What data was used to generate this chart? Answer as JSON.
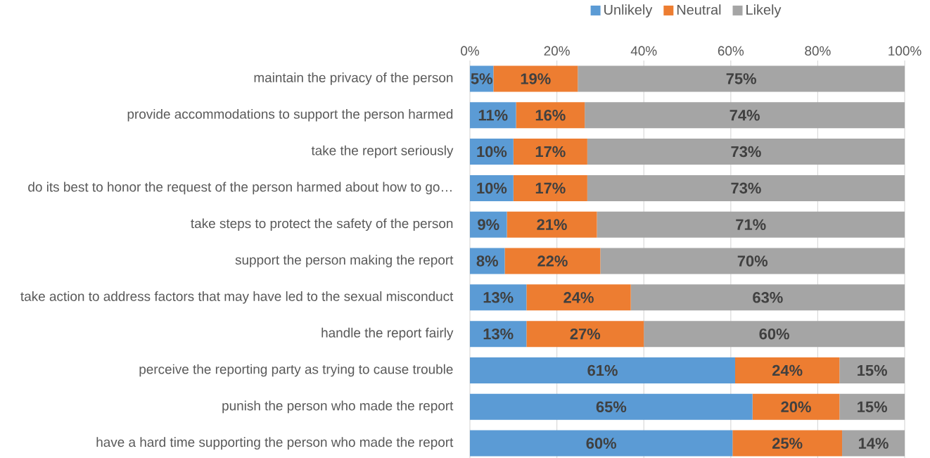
{
  "chart_data": {
    "type": "bar",
    "orientation": "horizontal",
    "stacked": true,
    "legend": "top",
    "grid": "x",
    "categories": [
      "maintain the privacy of the person",
      "provide accommodations to support the person harmed",
      "take the report seriously",
      "do its best to honor the request of the person harmed about how to go…",
      "take steps to protect the safety of the person",
      "support the person making the report",
      "take action to address factors that may have led to the sexual misconduct",
      "handle the report fairly",
      "perceive the reporting party as trying to cause trouble",
      "punish the person who made the report",
      "have a hard time supporting the person who made the report"
    ],
    "xlim": [
      0,
      100
    ],
    "xticks": [
      {
        "value": 0,
        "label": "0%"
      },
      {
        "value": 20,
        "label": "20%"
      },
      {
        "value": 40,
        "label": "40%"
      },
      {
        "value": 60,
        "label": "60%"
      },
      {
        "value": 80,
        "label": "80%"
      },
      {
        "value": 100,
        "label": "100%"
      }
    ],
    "series": [
      {
        "name": "Unlikely",
        "color": "#5b9bd5",
        "values": [
          5.4,
          10.6,
          10,
          10,
          8.5,
          8,
          13,
          13,
          61,
          65,
          60.4
        ],
        "value_labels": [
          "5%",
          "11%",
          "10%",
          "10%",
          "9%",
          "8%",
          "13%",
          "13%",
          "61%",
          "65%",
          "60%"
        ]
      },
      {
        "name": "Neutral",
        "color": "#ed7d31",
        "values": [
          19.4,
          15.8,
          17,
          17,
          20.7,
          22,
          24,
          27,
          24,
          20,
          25.2
        ],
        "value_labels": [
          "19%",
          "16%",
          "17%",
          "17%",
          "21%",
          "22%",
          "24%",
          "27%",
          "24%",
          "20%",
          "25%"
        ]
      },
      {
        "name": "Likely",
        "color": "#a5a5a5",
        "values": [
          75.2,
          73.6,
          73,
          73,
          70.8,
          70,
          63,
          60,
          15,
          15,
          14.4
        ],
        "value_labels": [
          "75%",
          "74%",
          "73%",
          "73%",
          "71%",
          "70%",
          "63%",
          "60%",
          "15%",
          "15%",
          "14%"
        ]
      }
    ]
  }
}
